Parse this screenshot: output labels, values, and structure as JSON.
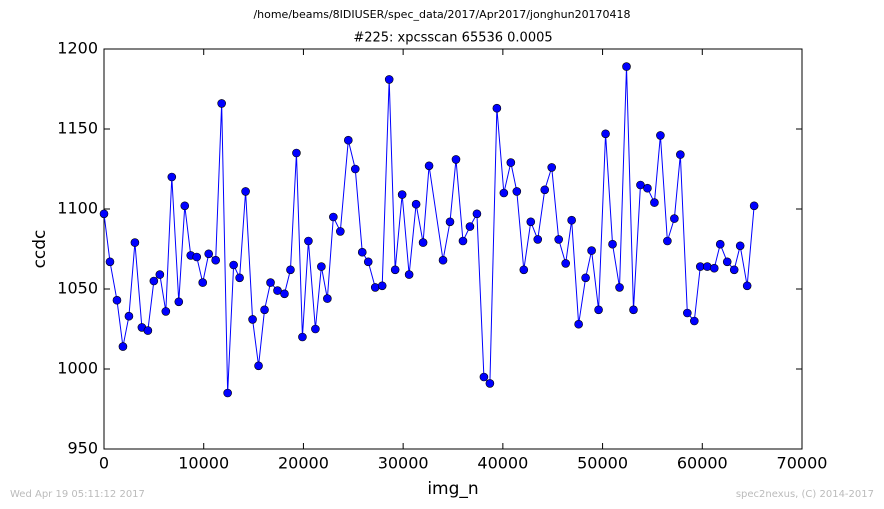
{
  "chart_data": {
    "type": "line",
    "path_header": "/home/beams/8IDIUSER/spec_data/2017/Apr2017/jonghun20170418",
    "title": "#225: xpcsscan 65536 0.0005",
    "xlabel": "img_n",
    "ylabel": "ccdc",
    "footer_left": "Wed Apr 19 05:11:12 2017",
    "footer_right": "spec2nexus, (C) 2014-2017",
    "xlim": [
      0,
      70000
    ],
    "xticks": [
      0,
      10000,
      20000,
      30000,
      40000,
      50000,
      60000,
      70000
    ],
    "ylim": [
      950,
      1200
    ],
    "yticks": [
      950,
      1000,
      1050,
      1100,
      1150,
      1200
    ],
    "color": "#0000ff",
    "x": [
      0,
      600,
      1300,
      1900,
      2500,
      3100,
      3800,
      4400,
      5000,
      5600,
      6200,
      6800,
      7500,
      8100,
      8700,
      9300,
      9900,
      10500,
      11200,
      11800,
      12400,
      13000,
      13600,
      14200,
      14900,
      15500,
      16100,
      16700,
      17400,
      18100,
      18700,
      19300,
      19900,
      20500,
      21200,
      21800,
      22400,
      23000,
      23700,
      24500,
      25200,
      25900,
      26500,
      27200,
      27900,
      28600,
      29200,
      29900,
      30600,
      31300,
      32000,
      32600,
      34000,
      34700,
      35300,
      36000,
      36700,
      37400,
      38100,
      38700,
      39400,
      40100,
      40800,
      41400,
      42100,
      42800,
      43500,
      44200,
      44900,
      45600,
      46300,
      46900,
      47600,
      48300,
      48900,
      49600,
      50300,
      51000,
      51700,
      52400,
      53100,
      53800,
      54500,
      55200,
      55800,
      56500,
      57200,
      57800,
      58500,
      59200,
      59800,
      60500,
      61200,
      61800,
      62500,
      63200,
      63800,
      64500,
      65200
    ],
    "values": [
      1097,
      1067,
      1043,
      1014,
      1033,
      1079,
      1026,
      1024,
      1055,
      1059,
      1036,
      1120,
      1042,
      1102,
      1071,
      1070,
      1054,
      1072,
      1068,
      1166,
      985,
      1065,
      1057,
      1111,
      1031,
      1002,
      1037,
      1054,
      1049,
      1047,
      1062,
      1135,
      1020,
      1080,
      1025,
      1064,
      1044,
      1095,
      1086,
      1143,
      1125,
      1073,
      1067,
      1051,
      1052,
      1181,
      1062,
      1109,
      1059,
      1103,
      1079,
      1127,
      1068,
      1092,
      1131,
      1080,
      1089,
      1097,
      995,
      991,
      1163,
      1110,
      1129,
      1111,
      1062,
      1092,
      1081,
      1112,
      1126,
      1081,
      1066,
      1093,
      1028,
      1057,
      1074,
      1037,
      1147,
      1078,
      1051,
      1189,
      1037,
      1115,
      1113,
      1104,
      1146,
      1080,
      1094,
      1134,
      1035,
      1030,
      1064,
      1064,
      1063,
      1078,
      1067,
      1062,
      1077,
      1052,
      1102
    ]
  }
}
